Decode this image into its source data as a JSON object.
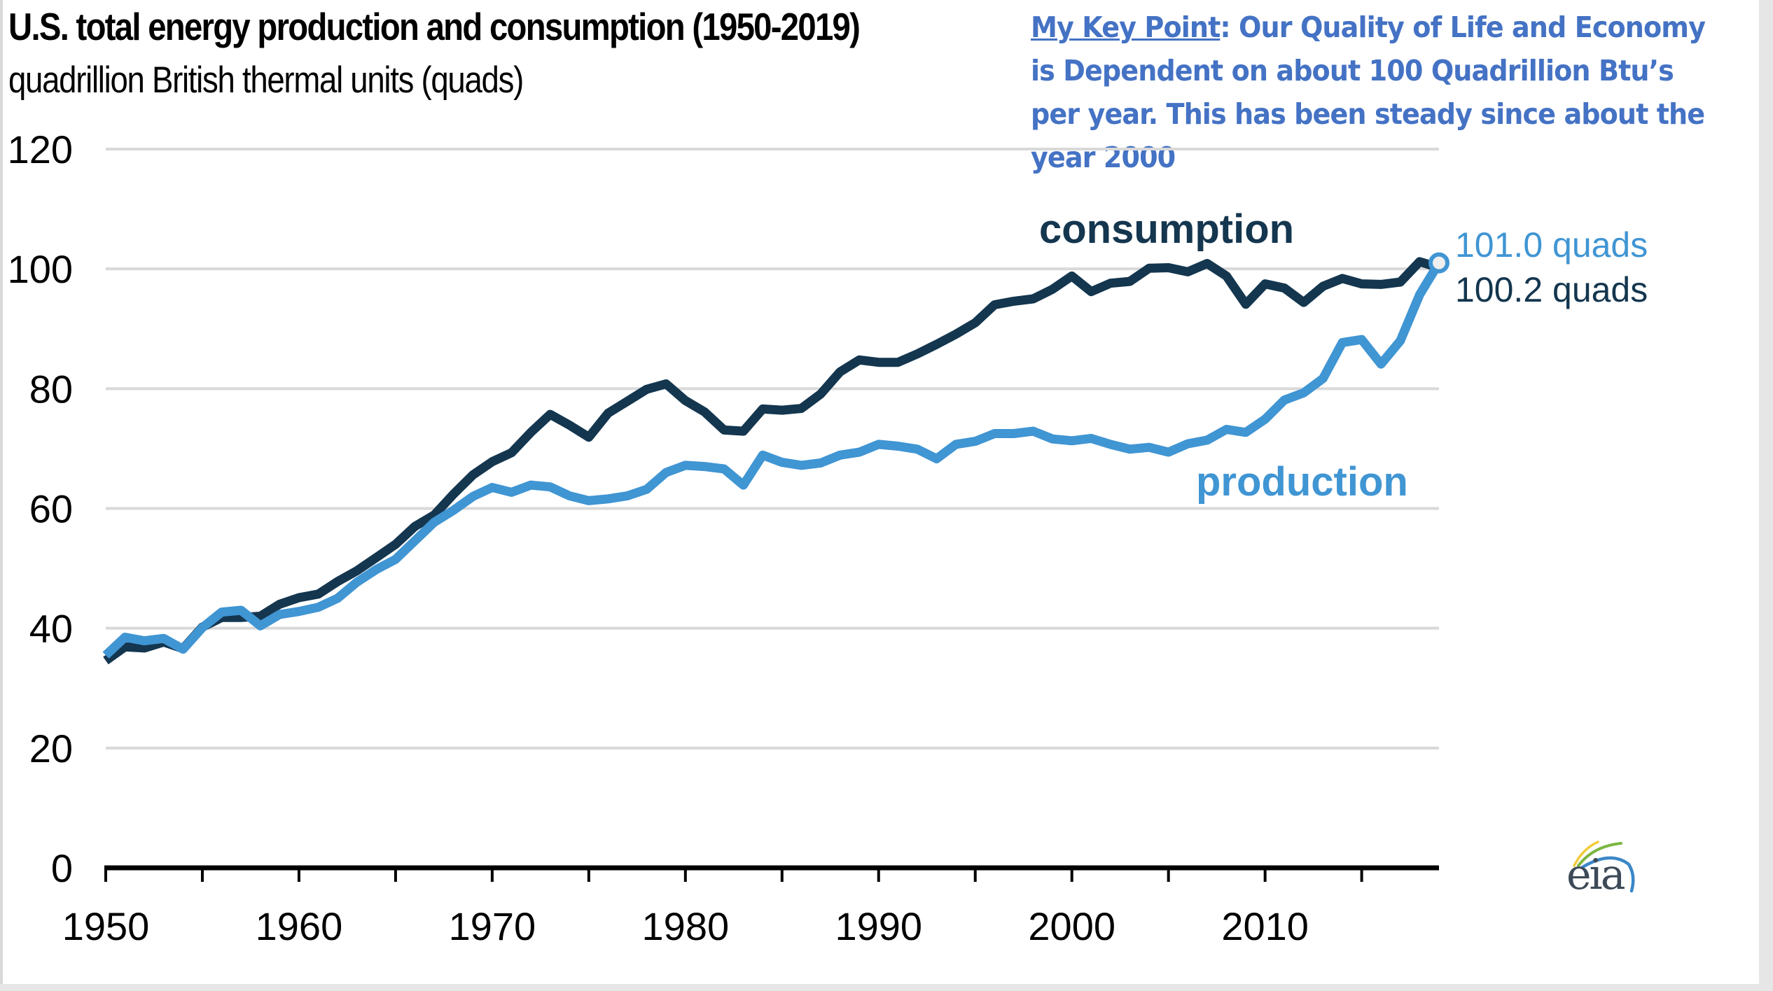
{
  "title": "U.S. total energy production and consumption (1950-2019)",
  "subtitle": "quadrillion British thermal units (quads)",
  "key_point": {
    "heading": "My Key Point",
    "text": ": Our Quality of Life and Economy is Dependent on about 100 Quadrillion Btu’s per year. This has been steady since about the year 2000"
  },
  "logo": {
    "name": "eia-logo",
    "text": "eia"
  },
  "colors": {
    "consumption": "#14364f",
    "production": "#4095d3",
    "gridline": "#d9d9d9",
    "axis": "#000000",
    "key_point": "#4472c4"
  },
  "chart_data": {
    "type": "line",
    "title": "U.S. total energy production and consumption (1950-2019)",
    "subtitle": "quadrillion British thermal units (quads)",
    "xlabel": "",
    "ylabel": "quadrillion British thermal units (quads)",
    "xlim": [
      1950,
      2019
    ],
    "ylim": [
      0,
      120
    ],
    "y_ticks": [
      0,
      20,
      40,
      60,
      80,
      100,
      120
    ],
    "x_ticks": [
      1950,
      1960,
      1970,
      1980,
      1990,
      2000,
      2010
    ],
    "x_minor_ticks": [
      1955,
      1965,
      1975,
      1985,
      1995,
      2005,
      2015
    ],
    "grid": true,
    "legend": "inline labels",
    "x": [
      1950,
      1951,
      1952,
      1953,
      1954,
      1955,
      1956,
      1957,
      1958,
      1959,
      1960,
      1961,
      1962,
      1963,
      1964,
      1965,
      1966,
      1967,
      1968,
      1969,
      1970,
      1971,
      1972,
      1973,
      1974,
      1975,
      1976,
      1977,
      1978,
      1979,
      1980,
      1981,
      1982,
      1983,
      1984,
      1985,
      1986,
      1987,
      1988,
      1989,
      1990,
      1991,
      1992,
      1993,
      1994,
      1995,
      1996,
      1997,
      1998,
      1999,
      2000,
      2001,
      2002,
      2003,
      2004,
      2005,
      2006,
      2007,
      2008,
      2009,
      2010,
      2011,
      2012,
      2013,
      2014,
      2015,
      2016,
      2017,
      2018,
      2019
    ],
    "series": [
      {
        "name": "consumption",
        "label": "consumption",
        "end_label": "100.2 quads",
        "end_value": 100.2,
        "values": [
          34.6,
          36.9,
          36.7,
          37.7,
          36.6,
          40.2,
          41.8,
          41.8,
          42.0,
          44.0,
          45.1,
          45.7,
          47.8,
          49.6,
          51.8,
          54.0,
          57.0,
          58.9,
          62.4,
          65.6,
          67.8,
          69.3,
          72.7,
          75.7,
          73.9,
          71.9,
          75.9,
          77.9,
          79.9,
          80.8,
          78.0,
          76.1,
          73.1,
          72.9,
          76.6,
          76.4,
          76.7,
          79.1,
          82.8,
          84.8,
          84.4,
          84.4,
          85.8,
          87.4,
          89.1,
          91.0,
          94.0,
          94.6,
          95.0,
          96.6,
          98.8,
          96.2,
          97.6,
          97.9,
          100.1,
          100.2,
          99.5,
          100.9,
          98.8,
          94.1,
          97.5,
          96.8,
          94.4,
          97.1,
          98.4,
          97.5,
          97.4,
          97.8,
          101.2,
          100.2
        ]
      },
      {
        "name": "production",
        "label": "production",
        "end_label": "101.0 quads",
        "end_value": 101.0,
        "values": [
          35.5,
          38.5,
          37.9,
          38.3,
          36.5,
          40.1,
          42.7,
          43.0,
          40.4,
          42.3,
          42.8,
          43.5,
          45.0,
          47.7,
          49.8,
          51.5,
          54.6,
          57.7,
          59.7,
          62.0,
          63.5,
          62.7,
          63.9,
          63.6,
          62.1,
          61.3,
          61.6,
          62.1,
          63.2,
          66.0,
          67.2,
          67.0,
          66.6,
          63.9,
          68.9,
          67.7,
          67.2,
          67.6,
          68.9,
          69.4,
          70.7,
          70.4,
          69.9,
          68.3,
          70.7,
          71.2,
          72.5,
          72.5,
          72.9,
          71.6,
          71.3,
          71.7,
          70.7,
          69.9,
          70.2,
          69.4,
          70.8,
          71.4,
          73.2,
          72.7,
          74.9,
          78.1,
          79.3,
          81.7,
          87.7,
          88.2,
          84.1,
          88.0,
          95.7,
          101.0
        ]
      }
    ],
    "annotations": [
      {
        "text": "consumption",
        "series": "consumption"
      },
      {
        "text": "production",
        "series": "production"
      },
      {
        "text": "101.0 quads",
        "series": "production",
        "year": 2019
      },
      {
        "text": "100.2 quads",
        "series": "consumption",
        "year": 2019
      }
    ]
  }
}
